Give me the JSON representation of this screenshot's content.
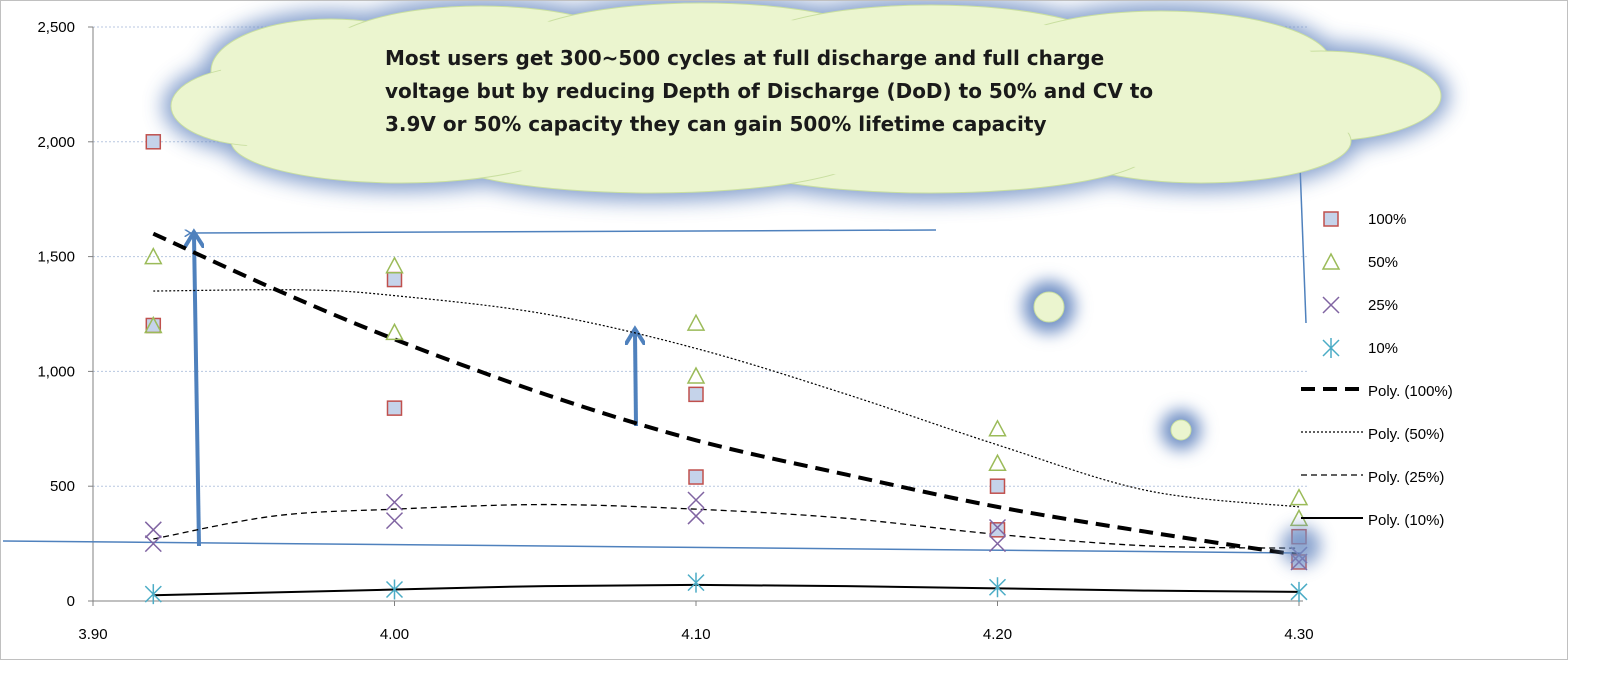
{
  "chart_data": {
    "type": "scatter",
    "title": "",
    "xlabel": "",
    "ylabel": "",
    "xlim": [
      3.9,
      4.3
    ],
    "ylim": [
      0,
      2500
    ],
    "x_ticks": [
      "3.90",
      "4.00",
      "4.10",
      "4.20",
      "4.30"
    ],
    "y_ticks": [
      "0",
      "500",
      "1,000",
      "1,500",
      "2,000",
      "2,500"
    ],
    "grid": "horizontal",
    "legend_position": "right",
    "series": [
      {
        "name": "100%",
        "marker": "square",
        "color": "#c0504d",
        "x": [
          3.92,
          3.92,
          4.0,
          4.0,
          4.1,
          4.1,
          4.2,
          4.2,
          4.3,
          4.3
        ],
        "y": [
          2000,
          1200,
          1400,
          840,
          900,
          540,
          500,
          310,
          280,
          170
        ]
      },
      {
        "name": "50%",
        "marker": "triangle",
        "color": "#9bbb59",
        "x": [
          3.92,
          3.92,
          4.0,
          4.0,
          4.1,
          4.1,
          4.2,
          4.2,
          4.3,
          4.3
        ],
        "y": [
          1500,
          1200,
          1460,
          1170,
          1210,
          980,
          750,
          600,
          450,
          360
        ]
      },
      {
        "name": "25%",
        "marker": "x",
        "color": "#8064a2",
        "x": [
          3.92,
          3.92,
          4.0,
          4.0,
          4.1,
          4.1,
          4.2,
          4.2,
          4.3,
          4.3
        ],
        "y": [
          310,
          250,
          430,
          350,
          440,
          370,
          320,
          250,
          200,
          170
        ]
      },
      {
        "name": "10%",
        "marker": "star",
        "color": "#4bacc6",
        "x": [
          3.92,
          4.0,
          4.1,
          4.2,
          4.3
        ],
        "y": [
          30,
          50,
          80,
          60,
          40
        ]
      }
    ],
    "trendlines": [
      {
        "name": "Poly. (100%)",
        "style": "thick-dash",
        "x": [
          3.92,
          3.96,
          4.0,
          4.05,
          4.1,
          4.15,
          4.2,
          4.25,
          4.3
        ],
        "y": [
          1600,
          1360,
          1140,
          900,
          700,
          550,
          410,
          300,
          200
        ]
      },
      {
        "name": "Poly. (50%)",
        "style": "dotted",
        "x": [
          3.92,
          3.97,
          4.0,
          4.05,
          4.1,
          4.15,
          4.2,
          4.25,
          4.3
        ],
        "y": [
          1350,
          1355,
          1330,
          1250,
          1100,
          900,
          680,
          480,
          410
        ]
      },
      {
        "name": "Poly. (25%)",
        "style": "dash",
        "x": [
          3.92,
          3.96,
          4.0,
          4.05,
          4.1,
          4.15,
          4.2,
          4.25,
          4.3
        ],
        "y": [
          270,
          370,
          400,
          420,
          400,
          360,
          290,
          240,
          230
        ]
      },
      {
        "name": "Poly. (10%)",
        "style": "solid",
        "x": [
          3.92,
          4.0,
          4.05,
          4.1,
          4.15,
          4.2,
          4.25,
          4.3
        ],
        "y": [
          25,
          50,
          65,
          70,
          65,
          55,
          45,
          40
        ]
      }
    ],
    "annotations": {
      "callout_lines": [
        "Most users get 300~500 cycles at full discharge and full charge",
        "voltage but by reducing Depth of Discharge (DoD) to 50% and CV  to",
        "3.9V  or 50% capacity they can gain 500% lifetime capacity"
      ]
    }
  },
  "colors": {
    "cloud_fill": "#ebf5cf",
    "cloud_glow": "#6f8fc4",
    "arrow": "#4f81bd",
    "gridline": "#b8c7e0"
  }
}
